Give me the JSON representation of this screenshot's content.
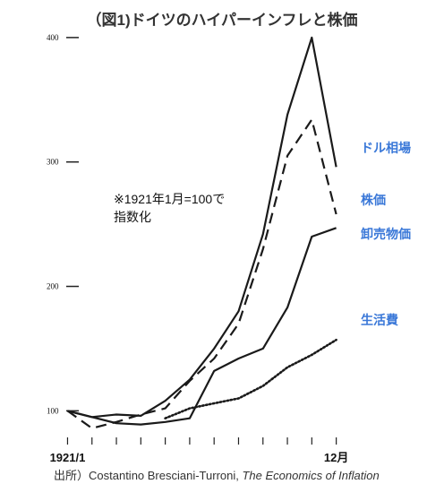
{
  "title": "（図1)ドイツのハイパーインフレと株価",
  "note_line1": "※1921年1月=100で",
  "note_line2": "指数化",
  "source_prefix": "出所）Costantino Bresciani-Turroni, ",
  "source_book": "The Economics of Inflation",
  "label_color": "#3a78d8",
  "chart_data": {
    "type": "line",
    "x": [
      1,
      2,
      3,
      4,
      5,
      6,
      7,
      8,
      9,
      10,
      11,
      12
    ],
    "x_tick_labels": [
      {
        "x": 1,
        "label": "1921/1"
      },
      {
        "x": 12,
        "label": "12月"
      }
    ],
    "ylim": [
      70,
      410
    ],
    "xlim": [
      0.8,
      12.6
    ],
    "y_ticks": [
      100,
      200,
      300,
      400
    ],
    "y_tick_labels": [
      "100",
      "200",
      "300",
      "400"
    ],
    "grid": false,
    "series": [
      {
        "name": "ドル相場",
        "style": "solid",
        "values": [
          100,
          95,
          97,
          96,
          108,
          125,
          150,
          180,
          242,
          338,
          400,
          296
        ]
      },
      {
        "name": "株価",
        "style": "dashed",
        "values": [
          100,
          86,
          91,
          97,
          102,
          124,
          142,
          170,
          230,
          305,
          334,
          258
        ]
      },
      {
        "name": "卸売物価",
        "style": "solid",
        "values": [
          100,
          95,
          90,
          89,
          91,
          94,
          132,
          142,
          150,
          183,
          240,
          247
        ]
      },
      {
        "name": "生活費",
        "style": "dotted",
        "values": [
          null,
          null,
          null,
          null,
          94,
          102,
          106,
          110,
          120,
          135,
          145,
          157
        ]
      }
    ]
  }
}
